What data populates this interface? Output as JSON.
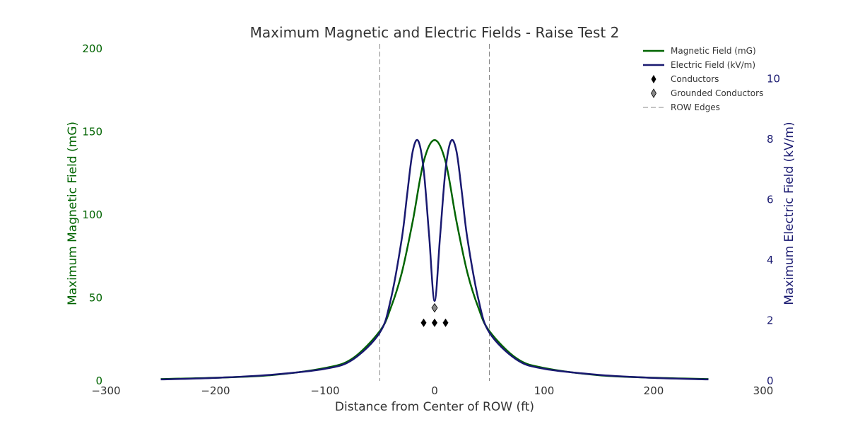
{
  "chart_data": {
    "type": "line",
    "title": "Maximum Magnetic and Electric Fields - Raise Test 2",
    "xlabel": "Distance from Center of ROW (ft)",
    "ylabel_left": "Maximum Magnetic Field (mG)",
    "ylabel_right": "Maximum Electric Field (kV/m)",
    "xlim": [
      -300,
      300
    ],
    "ylim_left": [
      0,
      200
    ],
    "ylim_right": [
      0,
      11
    ],
    "xticks": [
      -300,
      -200,
      -100,
      0,
      100,
      200,
      300
    ],
    "xtick_labels": [
      "−300",
      "−200",
      "−100",
      "0",
      "100",
      "200",
      "300"
    ],
    "yticks_left": [
      0,
      50,
      100,
      150,
      200
    ],
    "yticks_right": [
      0,
      2,
      4,
      6,
      8,
      10
    ],
    "grid": false,
    "legend_position": "top-right",
    "colors": {
      "magnetic": "#006400",
      "electric": "#191970",
      "conductors": "#000000",
      "grounded": "#888888",
      "row_edges": "#888888"
    },
    "series": [
      {
        "name": "Magnetic Field (mG)",
        "axis": "left",
        "x": [
          -250,
          -200,
          -150,
          -100,
          -75,
          -50,
          -40,
          -30,
          -20,
          -10,
          0,
          10,
          20,
          30,
          40,
          50,
          75,
          100,
          150,
          200,
          250
        ],
        "y": [
          1.1,
          1.9,
          3.4,
          7.8,
          13.5,
          30,
          44,
          65,
          96,
          132,
          145,
          132,
          96,
          65,
          44,
          30,
          13.5,
          7.8,
          3.4,
          1.9,
          1.1
        ]
      },
      {
        "name": "Electric Field (kV/m)",
        "axis": "right",
        "x": [
          -250,
          -200,
          -150,
          -100,
          -75,
          -50,
          -40,
          -30,
          -25,
          -20,
          -15,
          -10,
          -5,
          0,
          5,
          10,
          15,
          20,
          25,
          30,
          40,
          50,
          75,
          100,
          150,
          200,
          250
        ],
        "y": [
          0.05,
          0.1,
          0.2,
          0.4,
          0.7,
          1.6,
          2.7,
          4.7,
          6.2,
          7.6,
          7.95,
          7.0,
          4.8,
          2.65,
          4.8,
          7.0,
          7.95,
          7.6,
          6.2,
          4.7,
          2.7,
          1.6,
          0.7,
          0.4,
          0.2,
          0.1,
          0.05
        ]
      }
    ],
    "markers": [
      {
        "name": "Conductors",
        "axis": "left",
        "x": [
          -10,
          0,
          10
        ],
        "y": [
          35,
          35,
          35
        ]
      },
      {
        "name": "Grounded Conductors",
        "axis": "left",
        "x": [
          0
        ],
        "y": [
          44
        ]
      }
    ],
    "row_edges": {
      "name": "ROW Edges",
      "x": [
        -50,
        50
      ]
    },
    "legend": [
      {
        "label": "Magnetic Field (mG)",
        "kind": "line",
        "color_key": "magnetic"
      },
      {
        "label": "Electric Field (kV/m)",
        "kind": "line",
        "color_key": "electric"
      },
      {
        "label": "Conductors",
        "kind": "diamond",
        "color_key": "conductors"
      },
      {
        "label": "Grounded Conductors",
        "kind": "diamond",
        "color_key": "grounded"
      },
      {
        "label": "ROW Edges",
        "kind": "dashed",
        "color_key": "row_edges"
      }
    ]
  }
}
